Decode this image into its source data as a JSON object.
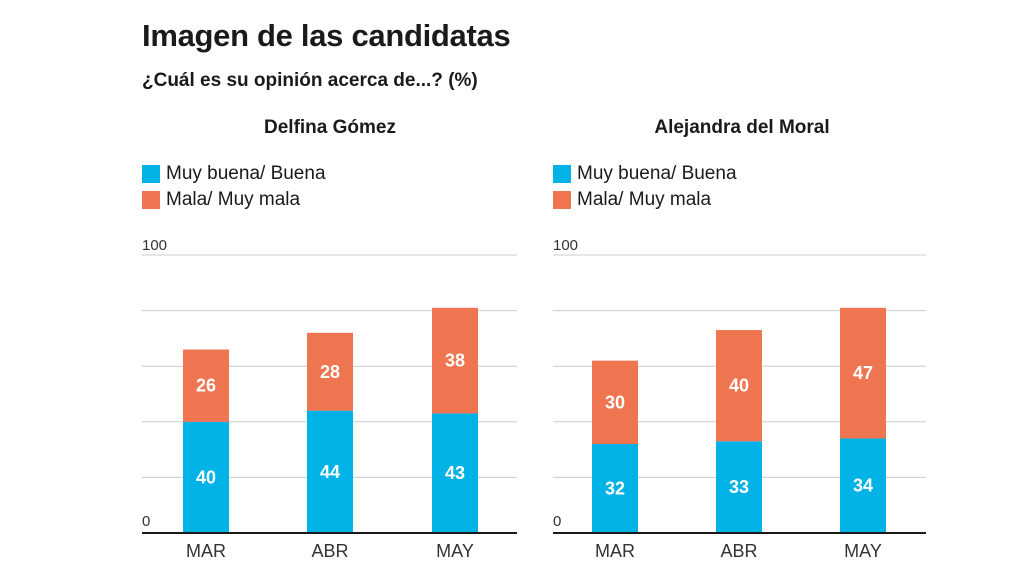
{
  "header": {
    "title": "Imagen de las candidatas",
    "subtitle": "¿Cuál es su opinión acerca de...? (%)"
  },
  "colors": {
    "positive": "#00b2e6",
    "negative": "#ee7550",
    "grid": "#cccccc",
    "axis": "#1a1a1a"
  },
  "chart_data": [
    {
      "type": "bar",
      "stacked": true,
      "title": "Delfina Gómez",
      "categories": [
        "MAR",
        "ABR",
        "MAY"
      ],
      "series": [
        {
          "name": "Muy buena/ Buena",
          "values": [
            40,
            44,
            43
          ]
        },
        {
          "name": "Mala/ Muy mala",
          "values": [
            26,
            28,
            38
          ]
        }
      ],
      "ylim": [
        0,
        100
      ],
      "yticks": [
        "0",
        "100"
      ],
      "grid": true,
      "legend": "top-left"
    },
    {
      "type": "bar",
      "stacked": true,
      "title": "Alejandra del Moral",
      "categories": [
        "MAR",
        "ABR",
        "MAY"
      ],
      "series": [
        {
          "name": "Muy buena/ Buena",
          "values": [
            32,
            33,
            34
          ]
        },
        {
          "name": "Mala/ Muy mala",
          "values": [
            30,
            40,
            47
          ]
        }
      ],
      "ylim": [
        0,
        100
      ],
      "yticks": [
        "0",
        "100"
      ],
      "grid": true,
      "legend": "top-left"
    }
  ]
}
